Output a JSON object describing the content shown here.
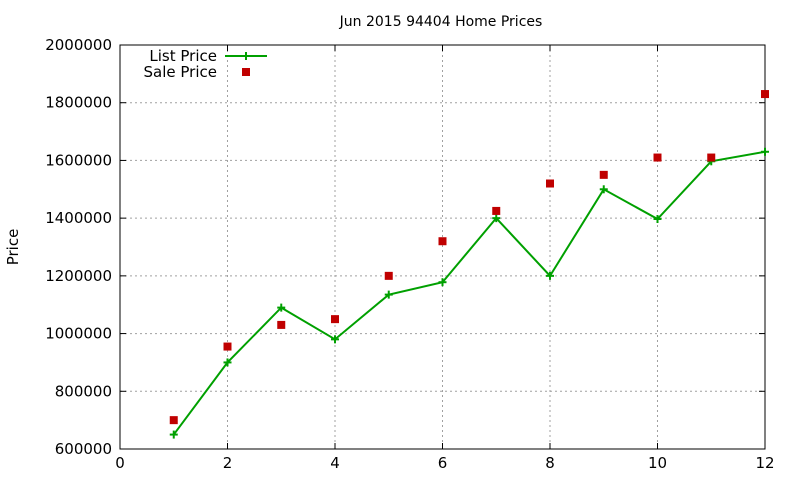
{
  "chart_data": {
    "type": "line",
    "title": "Jun 2015 94404 Home Prices",
    "xlabel": "",
    "ylabel": "Price",
    "xlim": [
      0,
      12
    ],
    "ylim": [
      600000,
      2000000
    ],
    "xticks": [
      0,
      2,
      4,
      6,
      8,
      10,
      12
    ],
    "yticks": [
      600000,
      800000,
      1000000,
      1200000,
      1400000,
      1600000,
      1800000,
      2000000
    ],
    "grid": true,
    "legend_position": "top-left",
    "series": [
      {
        "name": "List Price",
        "style": "line+cross",
        "color": "#00a000",
        "x": [
          1,
          2,
          3,
          4,
          5,
          6,
          7,
          8,
          9,
          10,
          11,
          12
        ],
        "values": [
          650000,
          900000,
          1090000,
          980000,
          1135000,
          1178000,
          1400000,
          1200000,
          1500000,
          1397000,
          1597000,
          1630000
        ]
      },
      {
        "name": "Sale Price",
        "style": "square-points",
        "color": "#c00000",
        "x": [
          1,
          2,
          3,
          4,
          5,
          6,
          7,
          8,
          9,
          10,
          11,
          12
        ],
        "values": [
          700000,
          955000,
          1030000,
          1050000,
          1200000,
          1320000,
          1425000,
          1520000,
          1550000,
          1610000,
          1610000,
          1830000
        ]
      }
    ]
  }
}
